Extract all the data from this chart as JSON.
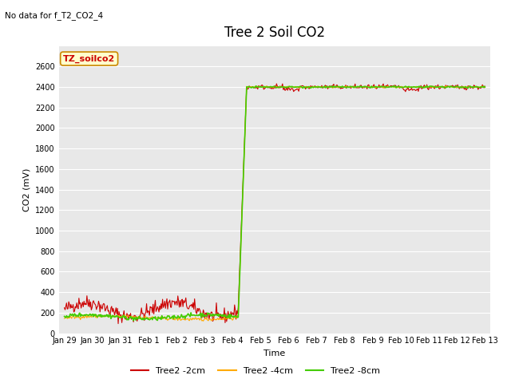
{
  "title": "Tree 2 Soil CO2",
  "no_data_text": "No data for f_T2_CO2_4",
  "xlabel": "Time",
  "ylabel": "CO2 (mV)",
  "ylim": [
    0,
    2800
  ],
  "yticks": [
    0,
    200,
    400,
    600,
    800,
    1000,
    1200,
    1400,
    1600,
    1800,
    2000,
    2200,
    2400,
    2600
  ],
  "figure_bg": "#ffffff",
  "plot_bg_color": "#e8e8e8",
  "grid_color": "#ffffff",
  "legend_label_box": "TZ_soilco2",
  "legend_box_facecolor": "#ffffcc",
  "legend_box_edgecolor": "#cc8800",
  "legend_box_textcolor": "#cc0000",
  "series": [
    {
      "label": "Tree2 -2cm",
      "color": "#cc0000"
    },
    {
      "label": "Tree2 -4cm",
      "color": "#ffaa00"
    },
    {
      "label": "Tree2 -8cm",
      "color": "#44cc00"
    }
  ],
  "x_tick_labels": [
    "Jan 29",
    "Jan 30",
    "Jan 31",
    "Feb 1",
    "Feb 2",
    "Feb 3",
    "Feb 4",
    "Feb 5",
    "Feb 6",
    "Feb 7",
    "Feb 8",
    "Feb 9",
    "Feb 10",
    "Feb 11",
    "Feb 12",
    "Feb 13"
  ],
  "title_fontsize": 12,
  "axis_label_fontsize": 8,
  "tick_fontsize": 7,
  "legend_fontsize": 8,
  "annotation_fontsize": 7.5
}
